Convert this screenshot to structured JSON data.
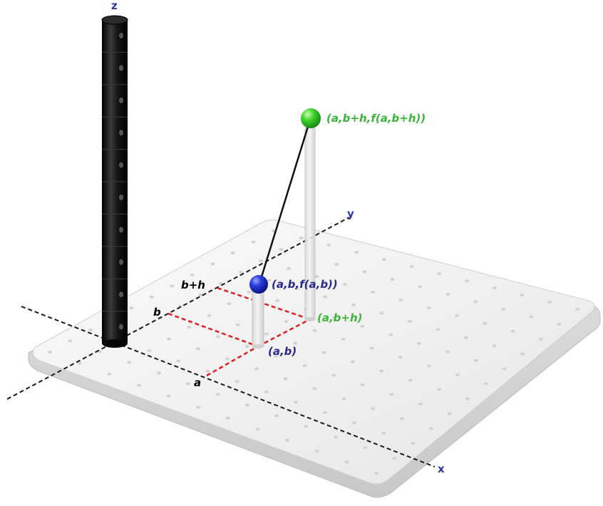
{
  "axes": {
    "x_label": "x",
    "y_label": "y",
    "z_label": "z"
  },
  "ticks": {
    "a": "a",
    "b": "b",
    "b_plus_h": "b+h"
  },
  "points": {
    "base_ab": "(a,b)",
    "base_ab_plus_h": "(a,b+h)",
    "top_ab": "(a,b,f(a,b))",
    "top_ab_plus_h": "(a,b+h,f(a,b+h))"
  },
  "colors": {
    "blue": "#2a2a8c",
    "green": "#3cb43c",
    "red_dashed": "#e02020",
    "axis": "#1a1a1a",
    "z_column": "#111111"
  }
}
